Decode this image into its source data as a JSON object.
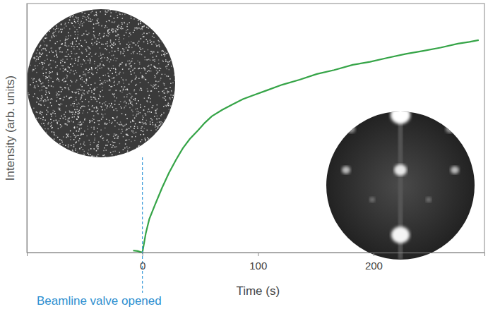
{
  "chart_data": {
    "type": "line",
    "x_label": "Time (s)",
    "y_label": "Intensity (arb. units)",
    "x": [
      -8,
      -4,
      0,
      3,
      6,
      11,
      17,
      23,
      29,
      35,
      41,
      48,
      54,
      60,
      69,
      78,
      87,
      96,
      108,
      121,
      136,
      151,
      166,
      182,
      197,
      212,
      228,
      243,
      258,
      273,
      283,
      291
    ],
    "values": [
      0.8,
      0.6,
      0,
      7.9,
      13.5,
      19.3,
      26.0,
      32.0,
      37.2,
      41.9,
      45.6,
      49.0,
      52.1,
      54.7,
      57.3,
      59.5,
      61.6,
      63.2,
      65.2,
      67.4,
      69.4,
      71.7,
      73.3,
      75.4,
      76.6,
      78.2,
      79.8,
      81.0,
      82.3,
      83.9,
      84.6,
      85.3
    ],
    "color": "#35a447",
    "xlim": [
      -100,
      296
    ],
    "ylim": [
      0,
      100
    ],
    "xticks": [
      0,
      100,
      200
    ],
    "tick_labels": "x",
    "grid": false,
    "annotations": [
      {
        "text": "Beamline valve opened",
        "x": 0
      }
    ]
  }
}
